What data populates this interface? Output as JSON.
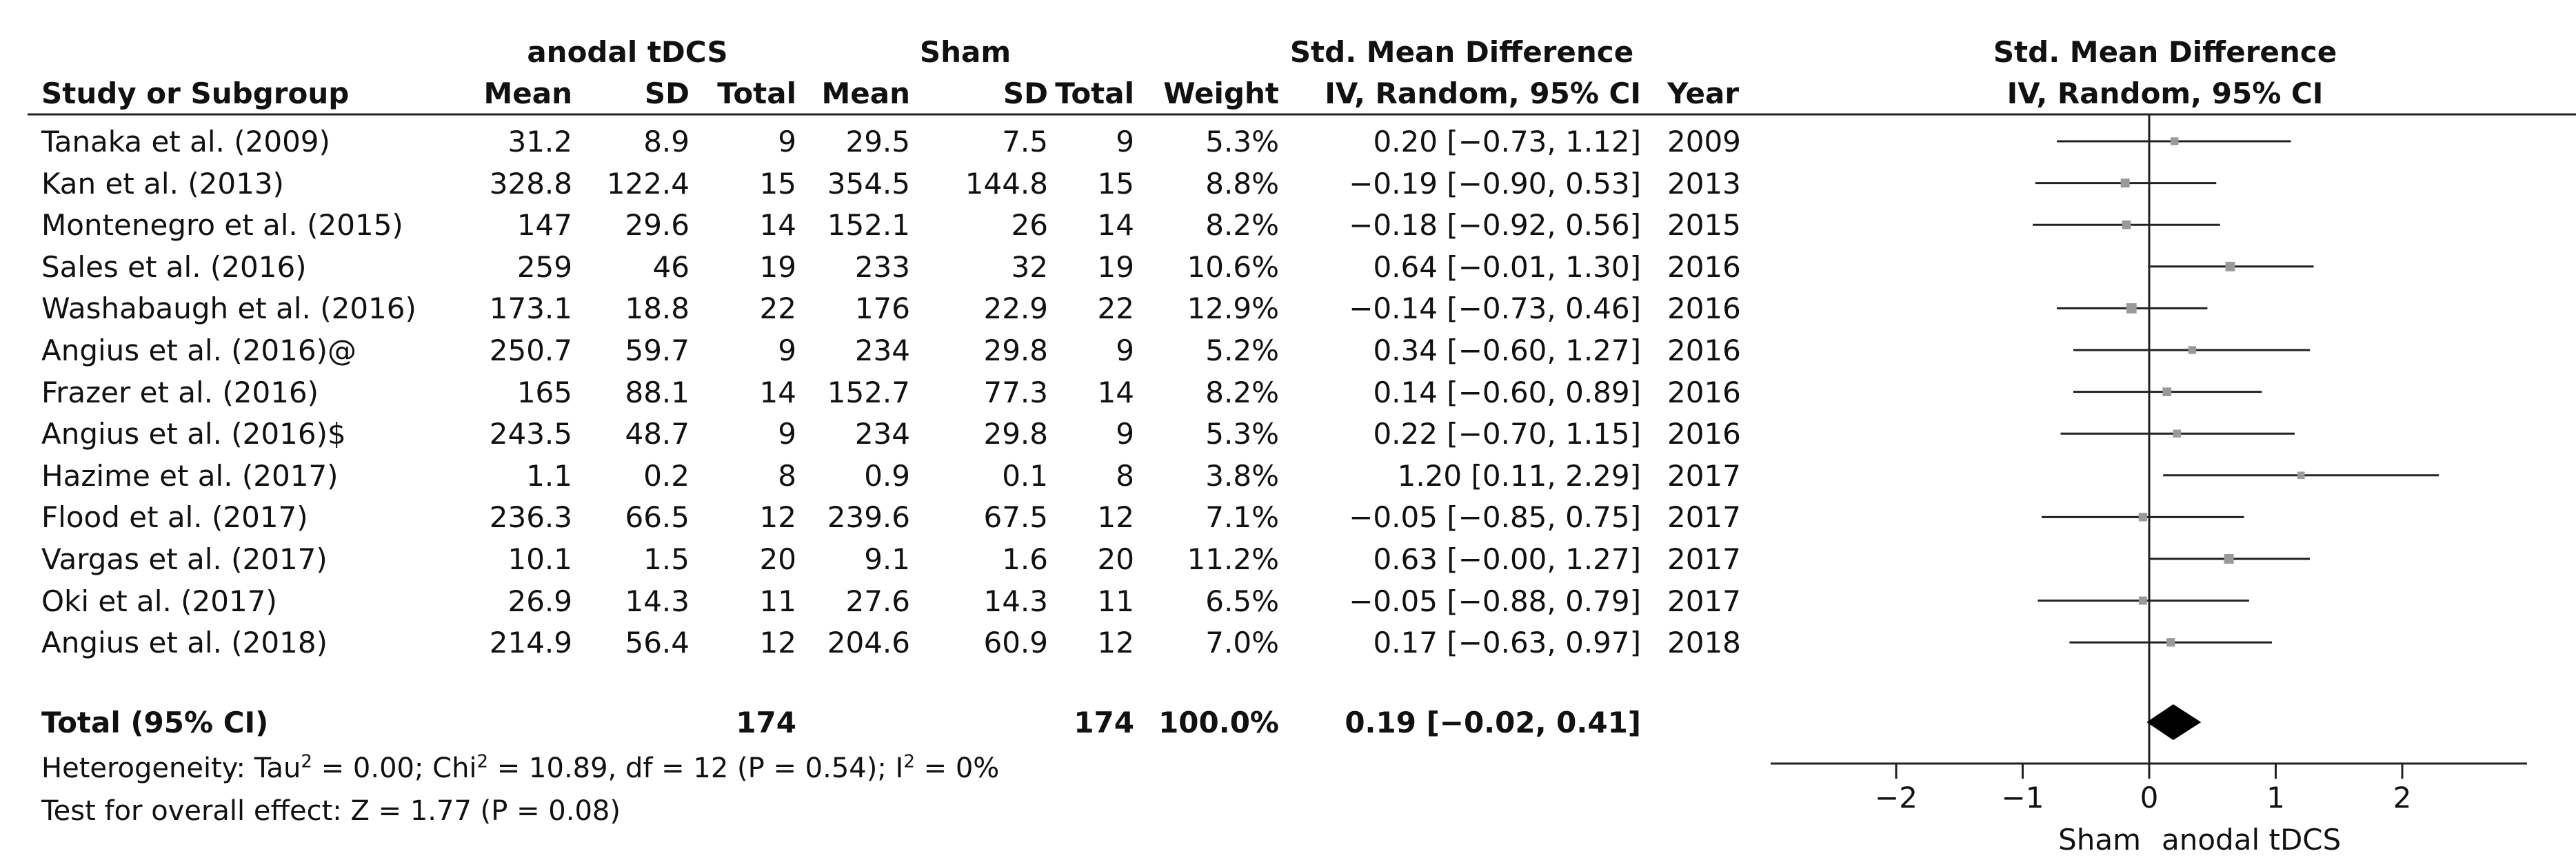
{
  "header": {
    "group_exp": "anodal tDCS",
    "group_ctrl": "Sham",
    "effect_title": "Std. Mean Difference",
    "plot_title": "Std. Mean Difference",
    "col_study": "Study or Subgroup",
    "col_mean": "Mean",
    "col_sd": "SD",
    "col_total": "Total",
    "col_weight": "Weight",
    "col_ci": "IV, Random, 95% CI",
    "col_year": "Year",
    "plot_subtitle": "IV, Random, 95% CI"
  },
  "studies": [
    {
      "name": "Tanaka et al. (2009)",
      "m1": "31.2",
      "sd1": "8.9",
      "n1": "9",
      "m2": "29.5",
      "sd2": "7.5",
      "n2": "9",
      "weight": "5.3%",
      "ci": "0.20 [−0.73, 1.12]",
      "year": "2009"
    },
    {
      "name": "Kan et al. (2013)",
      "m1": "328.8",
      "sd1": "122.4",
      "n1": "15",
      "m2": "354.5",
      "sd2": "144.8",
      "n2": "15",
      "weight": "8.8%",
      "ci": "−0.19 [−0.90, 0.53]",
      "year": "2013"
    },
    {
      "name": "Montenegro et al. (2015)",
      "m1": "147",
      "sd1": "29.6",
      "n1": "14",
      "m2": "152.1",
      "sd2": "26",
      "n2": "14",
      "weight": "8.2%",
      "ci": "−0.18 [−0.92, 0.56]",
      "year": "2015"
    },
    {
      "name": "Sales et al. (2016)",
      "m1": "259",
      "sd1": "46",
      "n1": "19",
      "m2": "233",
      "sd2": "32",
      "n2": "19",
      "weight": "10.6%",
      "ci": "0.64 [−0.01, 1.30]",
      "year": "2016"
    },
    {
      "name": "Washabaugh et al. (2016)",
      "m1": "173.1",
      "sd1": "18.8",
      "n1": "22",
      "m2": "176",
      "sd2": "22.9",
      "n2": "22",
      "weight": "12.9%",
      "ci": "−0.14 [−0.73, 0.46]",
      "year": "2016"
    },
    {
      "name": "Angius et al. (2016)@",
      "m1": "250.7",
      "sd1": "59.7",
      "n1": "9",
      "m2": "234",
      "sd2": "29.8",
      "n2": "9",
      "weight": "5.2%",
      "ci": "0.34 [−0.60, 1.27]",
      "year": "2016"
    },
    {
      "name": "Frazer et al. (2016)",
      "m1": "165",
      "sd1": "88.1",
      "n1": "14",
      "m2": "152.7",
      "sd2": "77.3",
      "n2": "14",
      "weight": "8.2%",
      "ci": "0.14 [−0.60, 0.89]",
      "year": "2016"
    },
    {
      "name": "Angius et al. (2016)$",
      "m1": "243.5",
      "sd1": "48.7",
      "n1": "9",
      "m2": "234",
      "sd2": "29.8",
      "n2": "9",
      "weight": "5.3%",
      "ci": "0.22 [−0.70, 1.15]",
      "year": "2016"
    },
    {
      "name": "Hazime et al. (2017)",
      "m1": "1.1",
      "sd1": "0.2",
      "n1": "8",
      "m2": "0.9",
      "sd2": "0.1",
      "n2": "8",
      "weight": "3.8%",
      "ci": "1.20 [0.11, 2.29]",
      "year": "2017"
    },
    {
      "name": "Flood et al. (2017)",
      "m1": "236.3",
      "sd1": "66.5",
      "n1": "12",
      "m2": "239.6",
      "sd2": "67.5",
      "n2": "12",
      "weight": "7.1%",
      "ci": "−0.05 [−0.85, 0.75]",
      "year": "2017"
    },
    {
      "name": "Vargas et al. (2017)",
      "m1": "10.1",
      "sd1": "1.5",
      "n1": "20",
      "m2": "9.1",
      "sd2": "1.6",
      "n2": "20",
      "weight": "11.2%",
      "ci": "0.63 [−0.00, 1.27]",
      "year": "2017"
    },
    {
      "name": "Oki et al. (2017)",
      "m1": "26.9",
      "sd1": "14.3",
      "n1": "11",
      "m2": "27.6",
      "sd2": "14.3",
      "n2": "11",
      "weight": "6.5%",
      "ci": "−0.05 [−0.88, 0.79]",
      "year": "2017"
    },
    {
      "name": "Angius et al. (2018)",
      "m1": "214.9",
      "sd1": "56.4",
      "n1": "12",
      "m2": "204.6",
      "sd2": "60.9",
      "n2": "12",
      "weight": "7.0%",
      "ci": "0.17 [−0.63, 0.97]",
      "year": "2018"
    }
  ],
  "total": {
    "label": "Total (95% CI)",
    "n1": "174",
    "n2": "174",
    "weight": "100.0%",
    "ci": "0.19 [−0.02, 0.41]"
  },
  "footer": {
    "heterogeneity": {
      "p1": "Heterogeneity: Tau",
      "s1": "2",
      "p2": " = 0.00; Chi",
      "s2": "2",
      "p3": " = 10.89, df = 12 (P = 0.54); I",
      "s3": "2",
      "p4": " = 0%"
    },
    "overall_effect": "Test for overall effect: Z = 1.77 (P = 0.08)"
  },
  "axis": {
    "ticks": [
      "−2",
      "−1",
      "0",
      "1",
      "2"
    ],
    "tick_values": [
      -2,
      -1,
      0,
      1,
      2
    ],
    "xlim": [
      -3,
      3
    ],
    "label_left": "Sham",
    "label_right": "anodal tDCS"
  },
  "chart_data": {
    "type": "scatter",
    "title": "Std. Mean Difference",
    "subtitle": "IV, Random, 95% CI",
    "xlabel": "",
    "xlim": [
      -3,
      3
    ],
    "series": [
      {
        "name": "",
        "points": [
          {
            "label": "Tanaka et al. (2009)",
            "smd": 0.2,
            "lower": -0.73,
            "upper": 1.12,
            "weight": 5.3
          },
          {
            "label": "Kan et al. (2013)",
            "smd": -0.19,
            "lower": -0.9,
            "upper": 0.53,
            "weight": 8.8
          },
          {
            "label": "Montenegro et al. (2015)",
            "smd": -0.18,
            "lower": -0.92,
            "upper": 0.56,
            "weight": 8.2
          },
          {
            "label": "Sales et al. (2016)",
            "smd": 0.64,
            "lower": -0.01,
            "upper": 1.3,
            "weight": 10.6
          },
          {
            "label": "Washabaugh et al. (2016)",
            "smd": -0.14,
            "lower": -0.73,
            "upper": 0.46,
            "weight": 12.9
          },
          {
            "label": "Angius et al. (2016)@",
            "smd": 0.34,
            "lower": -0.6,
            "upper": 1.27,
            "weight": 5.2
          },
          {
            "label": "Frazer et al. (2016)",
            "smd": 0.14,
            "lower": -0.6,
            "upper": 0.89,
            "weight": 8.2
          },
          {
            "label": "Angius et al. (2016)$",
            "smd": 0.22,
            "lower": -0.7,
            "upper": 1.15,
            "weight": 5.3
          },
          {
            "label": "Hazime et al. (2017)",
            "smd": 1.2,
            "lower": 0.11,
            "upper": 2.29,
            "weight": 3.8
          },
          {
            "label": "Flood et al. (2017)",
            "smd": -0.05,
            "lower": -0.85,
            "upper": 0.75,
            "weight": 7.1
          },
          {
            "label": "Vargas et al. (2017)",
            "smd": 0.63,
            "lower": -0.0,
            "upper": 1.27,
            "weight": 11.2
          },
          {
            "label": "Oki et al. (2017)",
            "smd": -0.05,
            "lower": -0.88,
            "upper": 0.79,
            "weight": 6.5
          },
          {
            "label": "Angius et al. (2018)",
            "smd": 0.17,
            "lower": -0.63,
            "upper": 0.97,
            "weight": 7.0
          }
        ]
      }
    ],
    "pooled": {
      "label": "Total (95% CI)",
      "smd": 0.19,
      "lower": -0.02,
      "upper": 0.41
    },
    "ticks": [
      -2,
      -1,
      0,
      1,
      2
    ],
    "legend_left": "Sham",
    "legend_right": "anodal tDCS",
    "colors": {
      "marker": "#9a9a9a",
      "line": "#222222",
      "diamond": "#000000"
    }
  }
}
